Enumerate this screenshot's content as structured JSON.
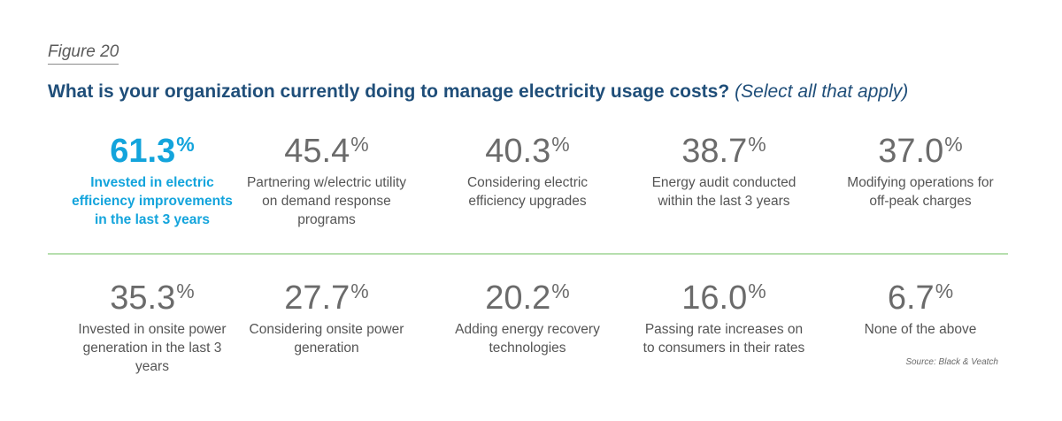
{
  "figure_label": "Figure 20",
  "headline": "What is your organization currently doing to manage electricity usage costs?",
  "headline_qualifier": "(Select all that apply)",
  "source": "Source: Black & Veatch",
  "colors": {
    "headline": "#1f4e79",
    "highlight": "#13a4dc",
    "value": "#6b6b6b",
    "divider": "#b6dfae"
  },
  "chart_data": {
    "type": "table",
    "title": "What is your organization currently doing to manage electricity usage costs?",
    "subtitle": "(Select all that apply)",
    "unit": "%",
    "items": [
      {
        "value": "61.3",
        "label": "Invested in electric efficiency improvements in the last 3 years",
        "highlighted": true
      },
      {
        "value": "45.4",
        "label": "Partnering w/electric utility on demand response programs"
      },
      {
        "value": "40.3",
        "label": "Considering electric efficiency upgrades"
      },
      {
        "value": "38.7",
        "label": "Energy audit conducted within the last 3 years"
      },
      {
        "value": "37.0",
        "label": "Modifying operations for off-peak charges"
      },
      {
        "value": "35.3",
        "label": "Invested in onsite power generation in the last 3 years"
      },
      {
        "value": "27.7",
        "label": "Considering onsite power generation"
      },
      {
        "value": "20.2",
        "label": "Adding energy recovery technologies"
      },
      {
        "value": "16.0",
        "label": "Passing rate increases on to consumers in their rates"
      },
      {
        "value": "6.7",
        "label": "None of the above"
      }
    ]
  }
}
